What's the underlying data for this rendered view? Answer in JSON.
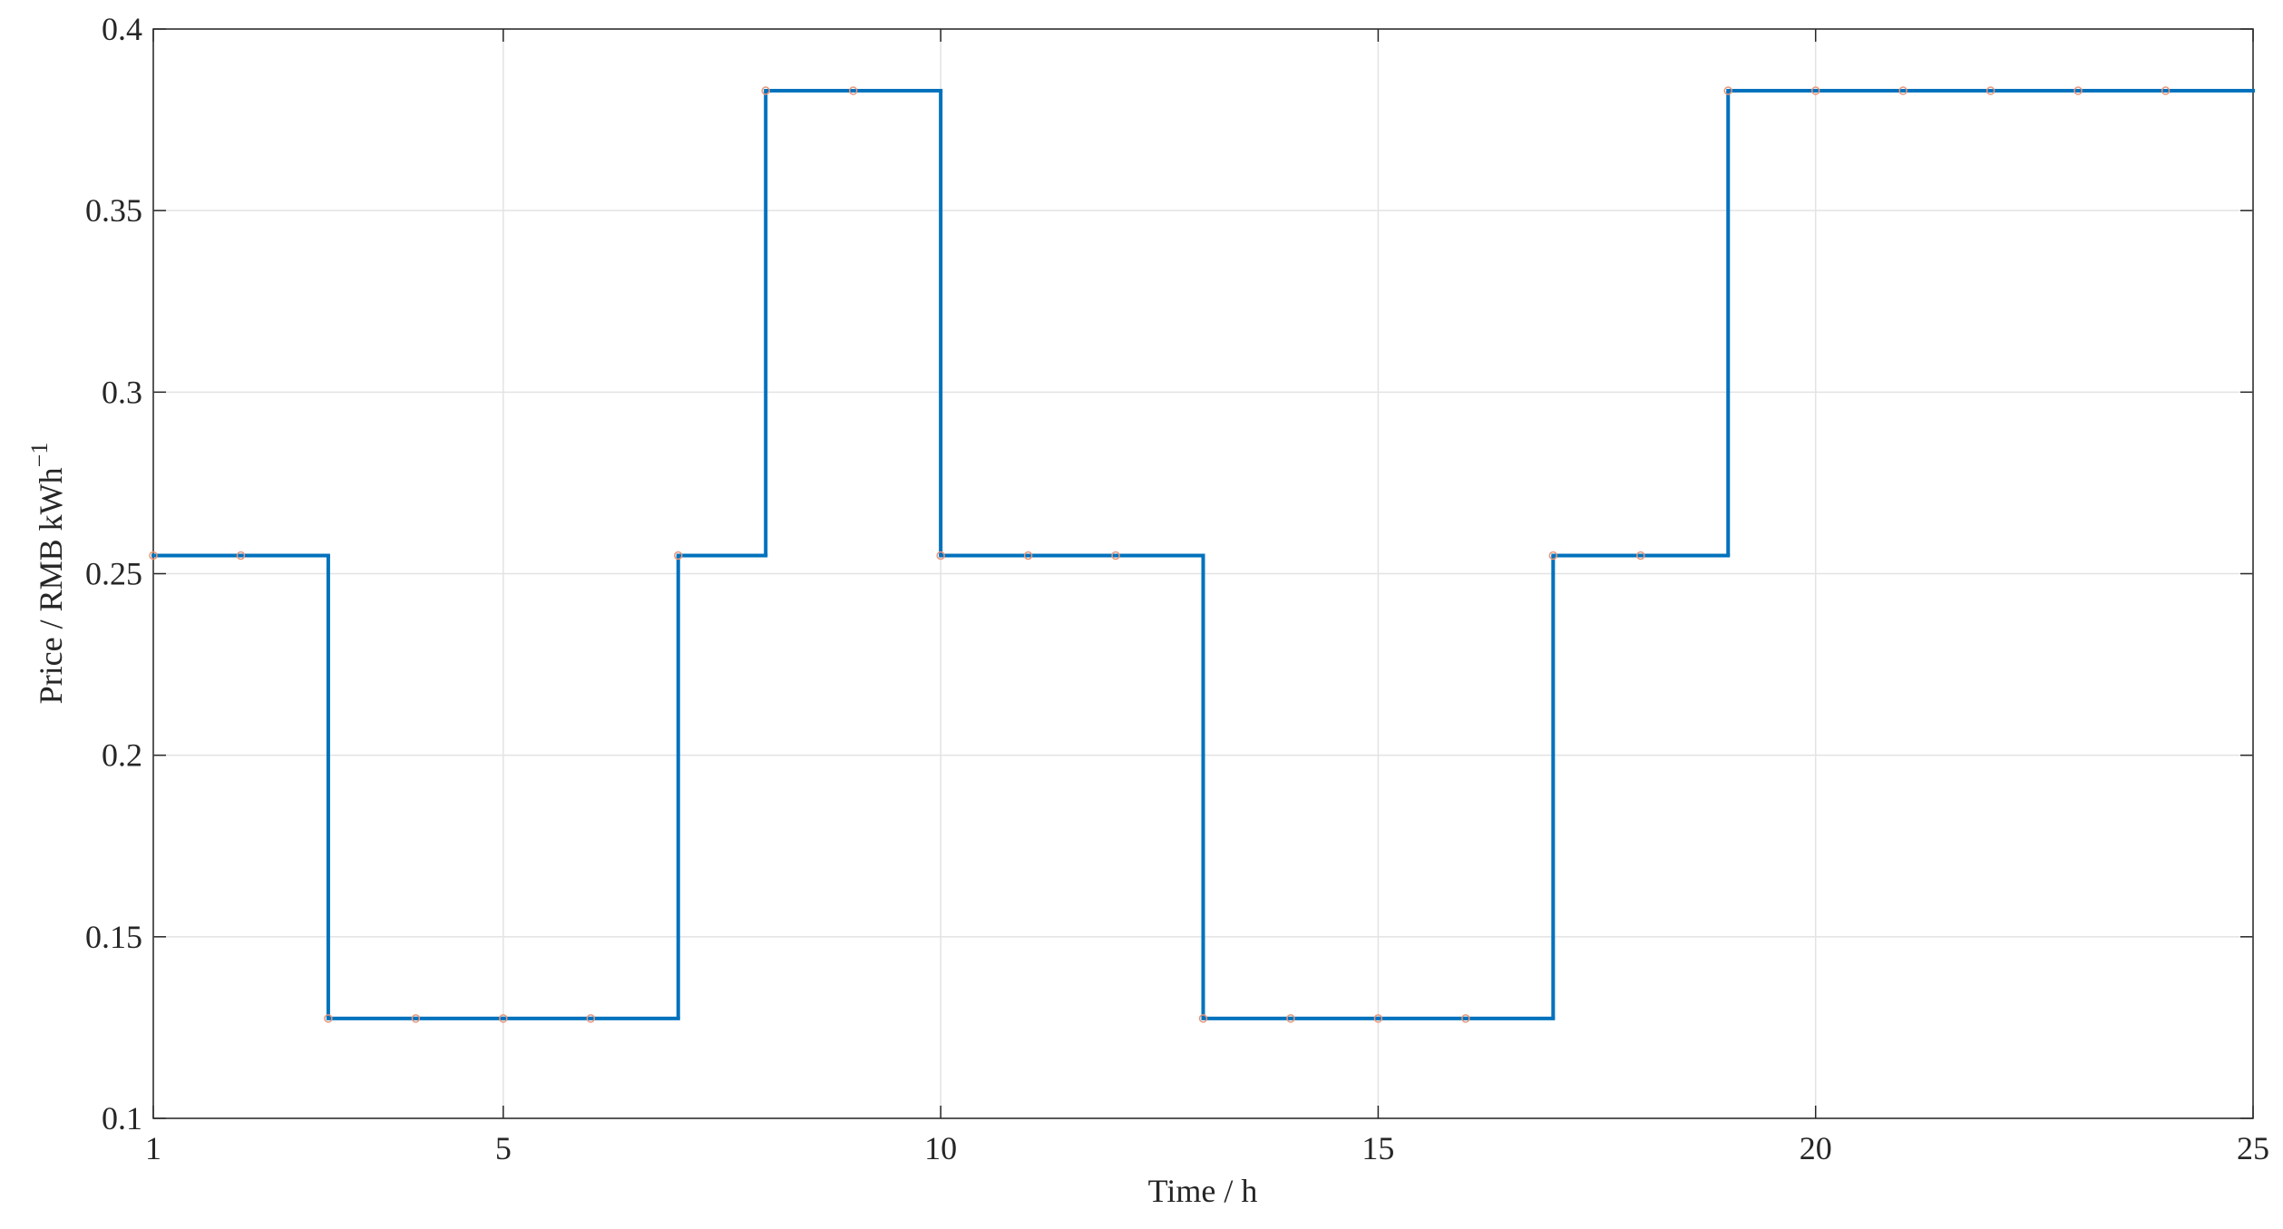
{
  "chart_data": {
    "type": "step",
    "xlabel": "Time / h",
    "ylabel": {
      "text": "Price / RMB kWh",
      "superscript": "−1"
    },
    "x": [
      1,
      2,
      3,
      4,
      5,
      6,
      7,
      8,
      9,
      10,
      11,
      12,
      13,
      14,
      15,
      16,
      17,
      18,
      19,
      20,
      21,
      22,
      23,
      24
    ],
    "series": [
      {
        "color": "#0072bd",
        "marker_color": "#e8967a",
        "values": [
          0.255,
          0.255,
          0.1275,
          0.1275,
          0.1275,
          0.1275,
          0.255,
          0.383,
          0.383,
          0.255,
          0.255,
          0.255,
          0.1275,
          0.1275,
          0.1275,
          0.1275,
          0.255,
          0.255,
          0.383,
          0.383,
          0.383,
          0.383,
          0.383,
          0.383
        ]
      }
    ],
    "xlim": [
      1,
      25
    ],
    "xticks": [
      1,
      5,
      10,
      15,
      20,
      25
    ],
    "ylim": [
      0.1,
      0.4
    ],
    "yticks": [
      0.1,
      0.15,
      0.2,
      0.25,
      0.3,
      0.35,
      0.4
    ],
    "grid": true
  }
}
